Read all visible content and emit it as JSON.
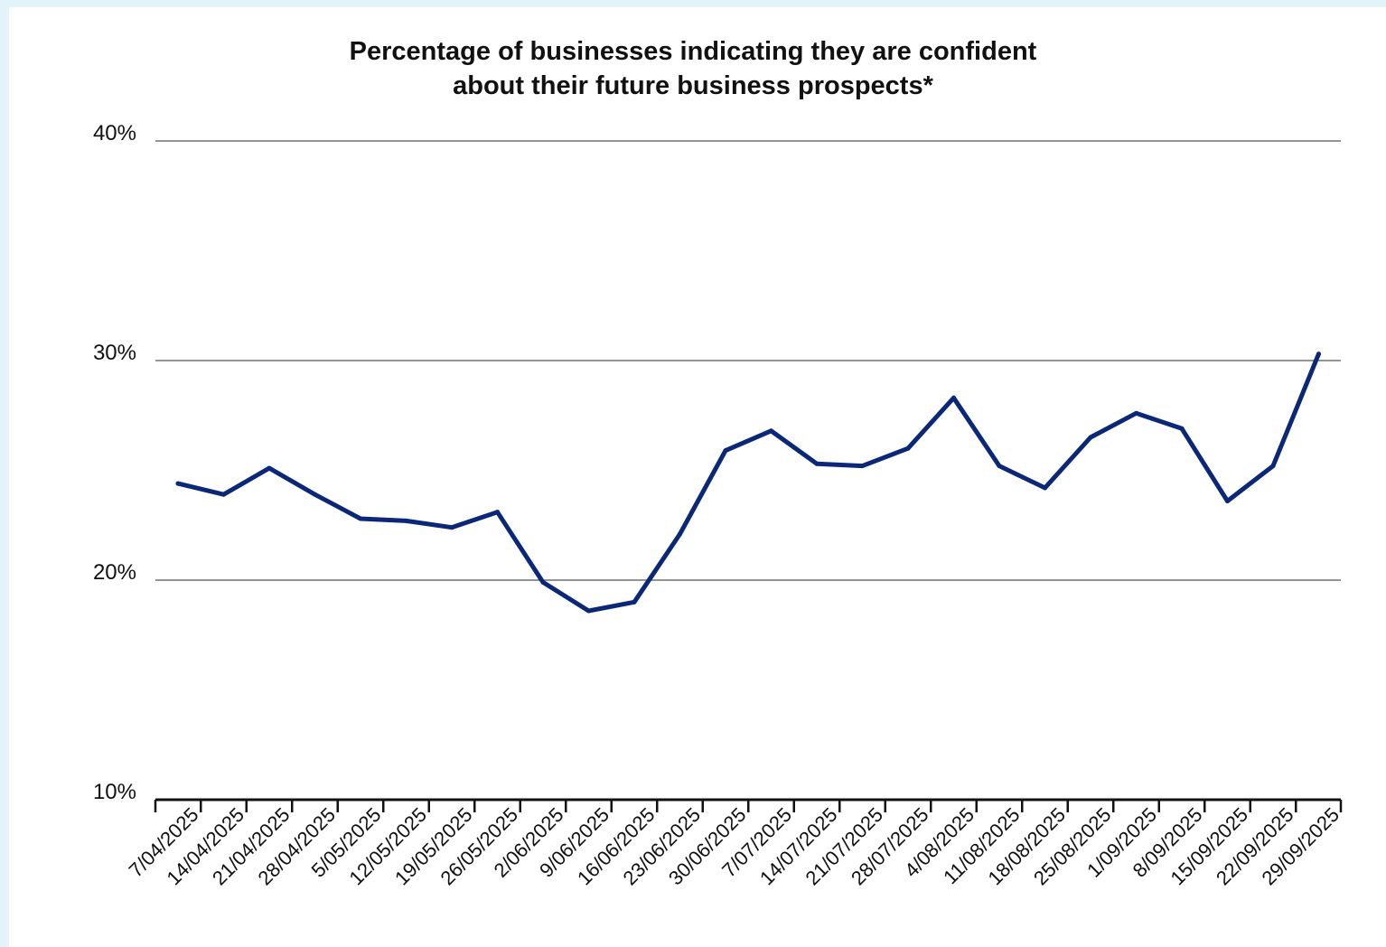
{
  "chart_data": {
    "type": "line",
    "title_lines": [
      "Percentage of businesses indicating they are confident",
      "about their future business prospects*"
    ],
    "xlabel": "",
    "ylabel": "",
    "ylim": [
      10,
      40
    ],
    "y_ticks": [
      10,
      20,
      30,
      40
    ],
    "y_tick_labels": [
      "10%",
      "20%",
      "30%",
      "40%"
    ],
    "grid": true,
    "legend": "none",
    "categories": [
      "7/04/2025",
      "14/04/2025",
      "21/04/2025",
      "28/04/2025",
      "5/05/2025",
      "12/05/2025",
      "19/05/2025",
      "26/05/2025",
      "2/06/2025",
      "9/06/2025",
      "16/06/2025",
      "23/06/2025",
      "30/06/2025",
      "7/07/2025",
      "14/07/2025",
      "21/07/2025",
      "28/07/2025",
      "4/08/2025",
      "11/08/2025",
      "18/08/2025",
      "25/08/2025",
      "1/09/2025",
      "8/09/2025",
      "15/09/2025",
      "22/09/2025",
      "29/09/2025"
    ],
    "series": [
      {
        "color": "#0b2878",
        "values": [
          24.4,
          23.9,
          25.1,
          23.9,
          22.8,
          22.7,
          22.4,
          23.1,
          19.9,
          18.6,
          19.0,
          22.1,
          25.9,
          26.8,
          25.3,
          25.2,
          26.0,
          28.3,
          25.2,
          24.2,
          26.5,
          27.6,
          26.9,
          23.6,
          25.2,
          30.3
        ]
      }
    ]
  }
}
